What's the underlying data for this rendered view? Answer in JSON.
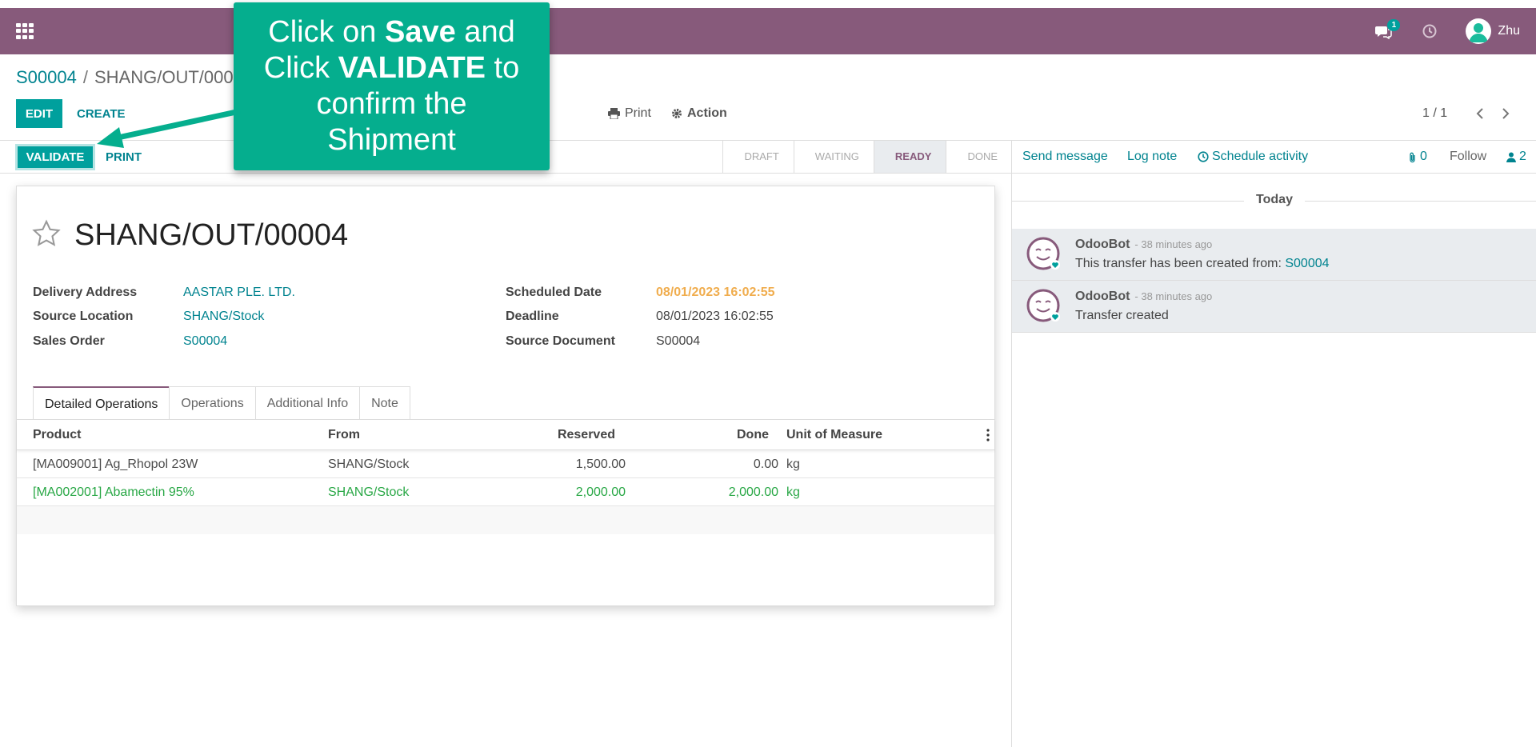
{
  "topbar": {
    "user_name": "Zhu",
    "chat_badge": "1"
  },
  "breadcrumb": {
    "parent": "S00004",
    "separator": "/",
    "current": "SHANG/OUT/00004"
  },
  "controls": {
    "edit_label": "EDIT",
    "create_label": "CREATE",
    "print_label": "Print",
    "action_label": "Action",
    "pager": "1 / 1"
  },
  "statusbar": {
    "validate_label": "VALIDATE",
    "print_label": "PRINT",
    "stages": [
      "DRAFT",
      "WAITING",
      "READY",
      "DONE"
    ],
    "active_stage": "READY"
  },
  "chatter": {
    "send_message": "Send message",
    "log_note": "Log note",
    "schedule_activity": "Schedule activity",
    "attachments_count": "0",
    "follow_label": "Follow",
    "followers_count": "2",
    "day_separator": "Today",
    "messages": [
      {
        "author": "OdooBot",
        "date": "- 38 minutes ago",
        "body": "This transfer has been created from:",
        "link": "S00004"
      },
      {
        "author": "OdooBot",
        "date": "- 38 minutes ago",
        "body": "Transfer created",
        "link": ""
      }
    ]
  },
  "record": {
    "title": "SHANG/OUT/00004",
    "fields_left": [
      {
        "label": "Delivery Address",
        "value": "AASTAR PLE. LTD."
      },
      {
        "label": "Source Location",
        "value": "SHANG/Stock"
      },
      {
        "label": "Sales Order",
        "value": "S00004"
      }
    ],
    "fields_right": [
      {
        "label": "Scheduled Date",
        "value": "08/01/2023 16:02:55"
      },
      {
        "label": "Deadline",
        "value": "08/01/2023 16:02:55"
      },
      {
        "label": "Source Document",
        "value": "S00004"
      }
    ]
  },
  "tabs": [
    "Detailed Operations",
    "Operations",
    "Additional Info",
    "Note"
  ],
  "table": {
    "headers": [
      "Product",
      "From",
      "Reserved",
      "Done",
      "Unit of Measure"
    ],
    "rows": [
      {
        "product": "[MA009001] Ag_Rhopol 23W",
        "from": "SHANG/Stock",
        "reserved": "1,500.00",
        "done": "0.00",
        "uom": "kg"
      },
      {
        "product": "[MA002001] Abamectin 95%",
        "from": "SHANG/Stock",
        "reserved": "2,000.00",
        "done": "2,000.00",
        "uom": "kg"
      }
    ]
  },
  "tooltip": {
    "line1_a": "Click on ",
    "line1_b": "Save",
    "line1_c": " and",
    "line2_a": "Click ",
    "line2_b": "VALIDATE",
    "line2_c": " to",
    "line3": "confirm the",
    "line4": "Shipment"
  },
  "colors": {
    "brand": "#875a7b",
    "accent": "#00a09d",
    "tooltip": "#05ae8e"
  }
}
